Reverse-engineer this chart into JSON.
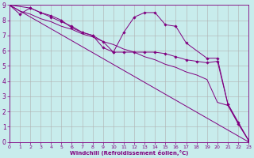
{
  "xlabel": "Windchill (Refroidissement éolien,°C)",
  "background_color": "#c8ecec",
  "grid_color": "#b0b0b0",
  "line_color": "#800080",
  "xlim": [
    0,
    23
  ],
  "ylim": [
    0,
    9
  ],
  "xticks": [
    0,
    1,
    2,
    3,
    4,
    5,
    6,
    7,
    8,
    9,
    10,
    11,
    12,
    13,
    14,
    15,
    16,
    17,
    18,
    19,
    20,
    21,
    22,
    23
  ],
  "yticks": [
    0,
    1,
    2,
    3,
    4,
    5,
    6,
    7,
    8,
    9
  ],
  "series": [
    {
      "x": [
        0,
        23
      ],
      "y": [
        9,
        0
      ],
      "has_markers": false
    },
    {
      "x": [
        0,
        1,
        2,
        3,
        4,
        5,
        6,
        7,
        8,
        9,
        10,
        11,
        12,
        13,
        14,
        15,
        16,
        17,
        18,
        19,
        20,
        21,
        22,
        23
      ],
      "y": [
        9,
        8.6,
        8.4,
        8.1,
        7.9,
        7.6,
        7.4,
        7.1,
        6.9,
        6.6,
        6.4,
        6.1,
        5.9,
        5.6,
        5.4,
        5.1,
        4.9,
        4.6,
        4.4,
        4.1,
        2.6,
        2.4,
        1.2,
        0.1
      ],
      "has_markers": false
    },
    {
      "x": [
        0,
        1,
        2,
        3,
        4,
        5,
        6,
        7,
        8,
        9,
        10,
        11,
        12,
        13,
        14,
        15,
        16,
        17,
        19,
        20,
        21,
        22,
        23
      ],
      "y": [
        9,
        8.4,
        8.8,
        8.5,
        8.3,
        8.0,
        7.5,
        7.2,
        7.0,
        6.2,
        5.9,
        7.2,
        8.2,
        8.5,
        8.5,
        7.7,
        7.6,
        6.5,
        5.5,
        5.5,
        2.5,
        1.3,
        0.1
      ],
      "has_markers": true
    },
    {
      "x": [
        0,
        2,
        3,
        4,
        5,
        6,
        7,
        8,
        9,
        10,
        11,
        12,
        13,
        14,
        15,
        16,
        17,
        18,
        19,
        20,
        21,
        22,
        23
      ],
      "y": [
        9,
        8.8,
        8.5,
        8.2,
        7.9,
        7.6,
        7.2,
        7.0,
        6.6,
        5.9,
        5.9,
        5.9,
        5.9,
        5.9,
        5.8,
        5.6,
        5.4,
        5.3,
        5.2,
        5.3,
        2.5,
        1.2,
        0.1
      ],
      "has_markers": true
    }
  ]
}
